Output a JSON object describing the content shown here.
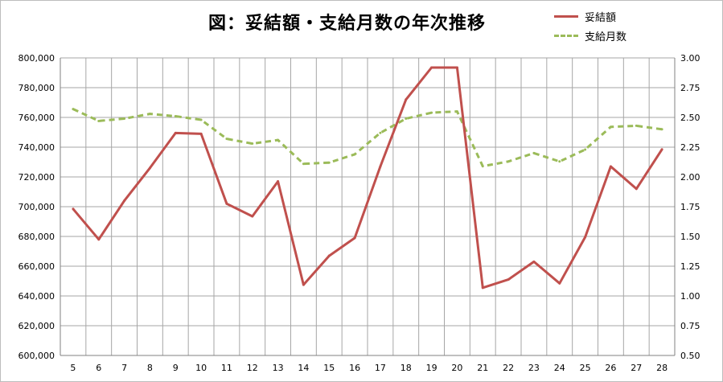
{
  "colors": {
    "series1": "#c0504d",
    "series2": "#9bbb59",
    "grid": "#a6a6a6",
    "axis": "#808080"
  },
  "chart_data": {
    "type": "line",
    "title": "図：妥結額・支給月数の年次推移",
    "x": [
      5,
      6,
      7,
      8,
      9,
      10,
      11,
      12,
      13,
      14,
      15,
      16,
      17,
      18,
      19,
      20,
      21,
      22,
      23,
      24,
      25,
      26,
      27,
      28
    ],
    "x_tick_labels": [
      "5",
      "6",
      "7",
      "8",
      "9",
      "10",
      "11",
      "12",
      "13",
      "14",
      "15",
      "16",
      "17",
      "18",
      "19",
      "20",
      "21",
      "22",
      "23",
      "24",
      "25",
      "26",
      "27",
      "28"
    ],
    "y_left": {
      "ylim": [
        600000,
        800000
      ],
      "ticks": [
        600000,
        620000,
        640000,
        660000,
        680000,
        700000,
        720000,
        740000,
        760000,
        780000,
        800000
      ],
      "tick_labels": [
        "600,000",
        "620,000",
        "640,000",
        "660,000",
        "680,000",
        "700,000",
        "720,000",
        "740,000",
        "760,000",
        "780,000",
        "800,000"
      ]
    },
    "y_right": {
      "ylim": [
        0.5,
        3.0
      ],
      "ticks": [
        0.5,
        0.75,
        1.0,
        1.25,
        1.5,
        1.75,
        2.0,
        2.25,
        2.5,
        2.75,
        3.0
      ],
      "tick_labels": [
        "0.50",
        "0.75",
        "1.00",
        "1.25",
        "1.50",
        "1.75",
        "2.00",
        "2.25",
        "2.50",
        "2.75",
        "3.00"
      ]
    },
    "series": [
      {
        "name": "妥結額",
        "axis": "left",
        "style": "solid",
        "values": [
          698500,
          678000,
          704000,
          726000,
          749500,
          749000,
          702000,
          693500,
          717000,
          647500,
          667000,
          679000,
          727000,
          772000,
          793500,
          793500,
          645500,
          651000,
          663000,
          648500,
          679500,
          727000,
          712000,
          738500
        ]
      },
      {
        "name": "支給月数",
        "axis": "right",
        "style": "dashed",
        "values": [
          2.57,
          2.47,
          2.49,
          2.53,
          2.51,
          2.48,
          2.32,
          2.28,
          2.31,
          2.11,
          2.12,
          2.19,
          2.37,
          2.49,
          2.54,
          2.55,
          2.09,
          2.13,
          2.2,
          2.13,
          2.23,
          2.42,
          2.43,
          2.4
        ]
      }
    ],
    "grid": true,
    "legend_position": "top-right"
  }
}
